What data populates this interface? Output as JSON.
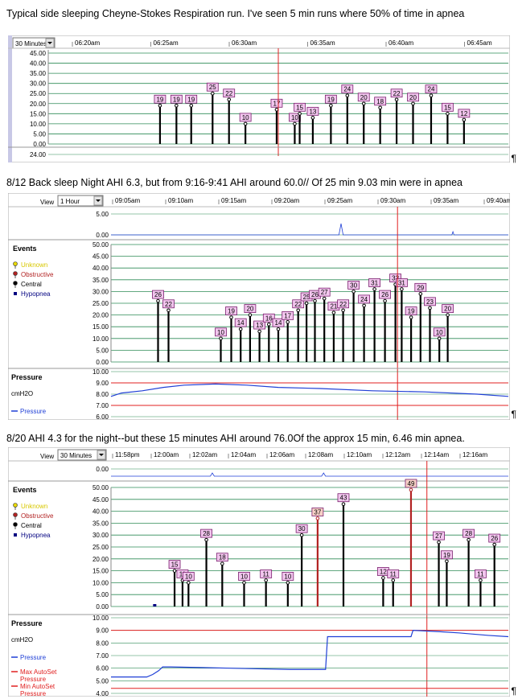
{
  "captions": {
    "c1": "Typical side sleeping Cheyne-Stokes Respiration run. I've seen 5 min runs where 50% of time in apnea",
    "c2": "8/12 Back sleep Night AHI 6.3, but from 9:16-9:41 AHI around 60.0// Of 25 min 9.03 min were in apnea",
    "c3": "8/20 AHI 4.3 for the night--but these 15 minutes AHI around 76.0Of the approx 15 min, 6.46 min apnea.",
    "pilcrow": "¶"
  },
  "colors": {
    "grid": "#2e8b57",
    "redline": "#e02020",
    "central": "#000000",
    "obstructive": "#b22222",
    "unknown": "#e8d800",
    "hypopnea": "#000080",
    "pressure": "#1f3fd6",
    "box": "#f2c6ee",
    "boxBorder": "#7a1f6e",
    "sidebar": "#c8c8e6"
  },
  "chart_data": [
    {
      "type": "bar",
      "id": "chart1",
      "view_label": "",
      "view_value": "30 Minutes",
      "x_ticks": [
        "06:20am",
        "06:25am",
        "06:30am",
        "06:35am",
        "06:40am",
        "06:45am"
      ],
      "x_range": [
        0,
        28
      ],
      "top_ticks": [
        "45.00",
        "40.00",
        "35.00",
        "30.00",
        "25.00",
        "20.00",
        "15.00",
        "10.00",
        "5.00",
        "0.00"
      ],
      "ylim": [
        0,
        45
      ],
      "bottom_strip_label": "24.00",
      "events": [
        {
          "x": 6.8,
          "v": 19
        },
        {
          "x": 7.8,
          "v": 19
        },
        {
          "x": 8.7,
          "v": 19
        },
        {
          "x": 10.0,
          "v": 25
        },
        {
          "x": 11.0,
          "v": 22
        },
        {
          "x": 12.0,
          "v": 10
        },
        {
          "x": 13.9,
          "v": 17
        },
        {
          "x": 15.0,
          "v": 10
        },
        {
          "x": 15.3,
          "v": 15
        },
        {
          "x": 16.1,
          "v": 13
        },
        {
          "x": 17.2,
          "v": 19
        },
        {
          "x": 18.2,
          "v": 24
        },
        {
          "x": 19.2,
          "v": 20
        },
        {
          "x": 20.2,
          "v": 18
        },
        {
          "x": 21.2,
          "v": 22
        },
        {
          "x": 22.2,
          "v": 20
        },
        {
          "x": 23.3,
          "v": 24
        },
        {
          "x": 24.3,
          "v": 15
        },
        {
          "x": 25.3,
          "v": 12
        }
      ],
      "cursor_x": 14.0
    },
    {
      "type": "bar",
      "id": "chart2",
      "view_label": "View",
      "view_value": "1 Hour",
      "x_ticks": [
        "09:05am",
        "09:10am",
        "09:15am",
        "09:20am",
        "09:25am",
        "09:30am",
        "09:35am",
        "09:40am"
      ],
      "x_range": [
        0,
        38
      ],
      "top_ticks": [
        "5.00",
        "0.00"
      ],
      "events_title": "Events",
      "legend": [
        "Unknown",
        "Obstructive",
        "Central",
        "Hypopnea"
      ],
      "event_ticks": [
        "50.00",
        "45.00",
        "40.00",
        "35.00",
        "30.00",
        "25.00",
        "20.00",
        "15.00",
        "10.00",
        "5.00",
        "0.00"
      ],
      "ylim": [
        0,
        50
      ],
      "events": [
        {
          "x": 4.5,
          "v": 26
        },
        {
          "x": 5.5,
          "v": 22
        },
        {
          "x": 10.5,
          "v": 10
        },
        {
          "x": 11.5,
          "v": 19
        },
        {
          "x": 12.4,
          "v": 14
        },
        {
          "x": 13.3,
          "v": 20
        },
        {
          "x": 14.2,
          "v": 13
        },
        {
          "x": 15.1,
          "v": 16
        },
        {
          "x": 16.0,
          "v": 14
        },
        {
          "x": 16.9,
          "v": 17
        },
        {
          "x": 17.9,
          "v": 22
        },
        {
          "x": 18.7,
          "v": 25
        },
        {
          "x": 19.5,
          "v": 26
        },
        {
          "x": 20.4,
          "v": 27
        },
        {
          "x": 21.3,
          "v": 21
        },
        {
          "x": 22.2,
          "v": 22
        },
        {
          "x": 23.2,
          "v": 30
        },
        {
          "x": 24.2,
          "v": 24
        },
        {
          "x": 25.2,
          "v": 31
        },
        {
          "x": 26.2,
          "v": 26
        },
        {
          "x": 27.2,
          "v": 33
        },
        {
          "x": 27.8,
          "v": 31
        },
        {
          "x": 28.7,
          "v": 19
        },
        {
          "x": 29.6,
          "v": 29
        },
        {
          "x": 30.5,
          "v": 23
        },
        {
          "x": 31.4,
          "v": 10
        },
        {
          "x": 32.2,
          "v": 20
        }
      ],
      "cursor_x": 27.4,
      "pressure_title": "Pressure",
      "pressure_unit": "cmH2O",
      "pressure_legend": [
        "Pressure"
      ],
      "pressure_ticks": [
        "10.00",
        "9.00",
        "8.00",
        "7.00",
        "6.00"
      ],
      "pressure_ylim": [
        6,
        10
      ],
      "pressure_series": {
        "x": [
          0,
          1,
          3,
          5,
          7,
          10,
          13,
          16,
          20,
          25,
          30,
          35,
          38
        ],
        "y": [
          7.8,
          8.1,
          8.3,
          8.6,
          8.8,
          8.9,
          8.8,
          8.6,
          8.5,
          8.3,
          8.2,
          8.0,
          7.8
        ]
      },
      "pressure_redlines": [
        9.0,
        7.0
      ]
    },
    {
      "type": "bar",
      "id": "chart3",
      "view_label": "View",
      "view_value": "30 Minutes",
      "x_ticks": [
        "11:58pm",
        "12:00am",
        "12:02am",
        "12:04am",
        "12:06am",
        "12:08am",
        "12:10am",
        "12:12am",
        "12:14am",
        "12:16am"
      ],
      "x_range": [
        0,
        20
      ],
      "events_title": "Events",
      "legend": [
        "Unknown",
        "Obstructive",
        "Central",
        "Hypopnea"
      ],
      "event_ticks": [
        "50.00",
        "45.00",
        "40.00",
        "35.00",
        "30.00",
        "25.00",
        "20.00",
        "15.00",
        "10.00",
        "5.00",
        "0.00"
      ],
      "ylim": [
        0,
        50
      ],
      "events": [
        {
          "x": 3.2,
          "v": 15,
          "t": "central"
        },
        {
          "x": 3.6,
          "v": 11,
          "t": "central"
        },
        {
          "x": 3.9,
          "v": 10,
          "t": "central"
        },
        {
          "x": 4.8,
          "v": 28,
          "t": "central"
        },
        {
          "x": 5.6,
          "v": 18,
          "t": "central"
        },
        {
          "x": 6.7,
          "v": 10,
          "t": "central"
        },
        {
          "x": 7.8,
          "v": 11,
          "t": "central"
        },
        {
          "x": 8.9,
          "v": 10,
          "t": "central"
        },
        {
          "x": 9.6,
          "v": 30,
          "t": "central"
        },
        {
          "x": 10.4,
          "v": 37,
          "t": "obstructive"
        },
        {
          "x": 11.7,
          "v": 43,
          "t": "central"
        },
        {
          "x": 13.7,
          "v": 12,
          "t": "central"
        },
        {
          "x": 14.2,
          "v": 11,
          "t": "central"
        },
        {
          "x": 15.1,
          "v": 49,
          "t": "obstructive"
        },
        {
          "x": 16.5,
          "v": 27,
          "t": "central"
        },
        {
          "x": 16.9,
          "v": 19,
          "t": "central"
        },
        {
          "x": 18.0,
          "v": 28,
          "t": "central"
        },
        {
          "x": 18.6,
          "v": 11,
          "t": "central"
        },
        {
          "x": 19.3,
          "v": 26,
          "t": "central"
        }
      ],
      "hypopnea_x": 2.2,
      "cursor_x": 15.9,
      "pressure_title": "Pressure",
      "pressure_unit": "cmH2O",
      "pressure_legend": [
        "Pressure",
        "Max AutoSet Pressure",
        "Min AutoSet Pressure"
      ],
      "pressure_ticks": [
        "10.00",
        "9.00",
        "8.00",
        "7.00",
        "6.00",
        "5.00",
        "4.00"
      ],
      "pressure_ylim": [
        4,
        10
      ],
      "pressure_series": {
        "x": [
          0,
          1.8,
          2.1,
          2.4,
          2.6,
          3.0,
          6.0,
          9.0,
          10.8,
          10.9,
          11.5,
          15.1,
          15.2,
          16.5,
          17.5,
          19.0,
          20.0
        ],
        "y": [
          5.3,
          5.3,
          5.5,
          5.8,
          6.1,
          6.1,
          6.0,
          5.9,
          5.9,
          8.5,
          8.5,
          8.5,
          9.0,
          8.9,
          8.8,
          8.6,
          8.5
        ]
      },
      "pressure_redlines": [
        9.0,
        4.4
      ]
    }
  ]
}
